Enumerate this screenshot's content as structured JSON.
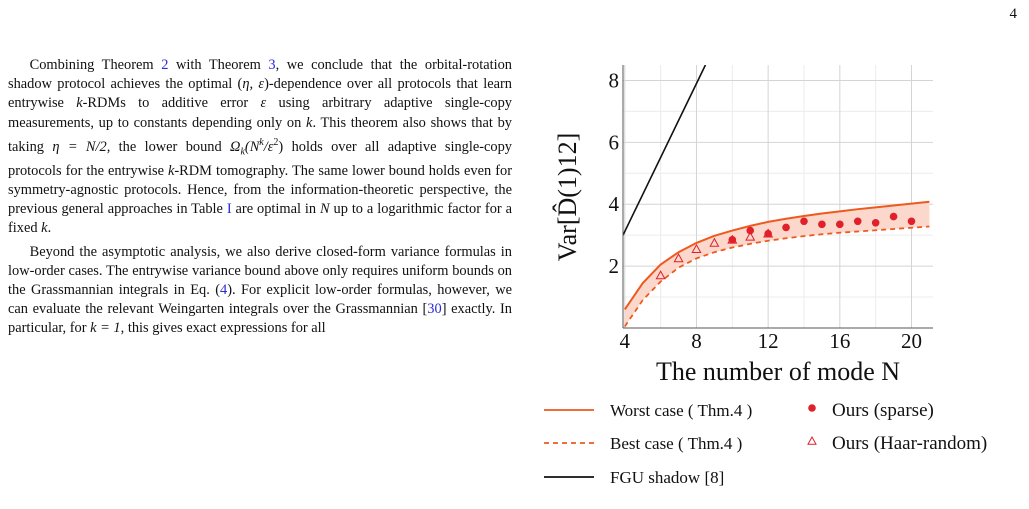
{
  "page": {
    "number": "4"
  },
  "paragraphs": [
    {
      "parts": [
        {
          "t": "Combining Theorem "
        },
        {
          "t": "2",
          "ref": true
        },
        {
          "t": " with Theorem "
        },
        {
          "t": "3",
          "ref": true
        },
        {
          "t": ", we conclude that the orbital-rotation shadow protocol achieves the optimal ("
        },
        {
          "t": "η, ε",
          "math": true
        },
        {
          "t": ")-dependence over all protocols that learn entrywise "
        },
        {
          "t": "k",
          "math": true
        },
        {
          "t": "-RDMs to additive error "
        },
        {
          "t": "ε",
          "math": true
        },
        {
          "t": " using arbitrary adaptive single-copy measurements, up to constants depending only on "
        },
        {
          "t": "k",
          "math": true
        },
        {
          "t": ". This theorem also shows that by taking "
        },
        {
          "t": "η = N/2",
          "math": true
        },
        {
          "t": ", the lower bound "
        },
        {
          "t": "Ω",
          "math": true
        },
        {
          "t": "k",
          "math": true,
          "sub": true
        },
        {
          "t": "(N",
          "math": true
        },
        {
          "t": "k",
          "math": true,
          "sup": true
        },
        {
          "t": "/ε",
          "math": true
        },
        {
          "t": "2",
          "sup": true
        },
        {
          "t": ")"
        },
        {
          "t": " holds over all adaptive single-copy protocols for the entrywise "
        },
        {
          "t": "k",
          "math": true
        },
        {
          "t": "-RDM tomography. The same lower bound holds even for symmetry-agnostic protocols. Hence, from the information-theoretic perspective, the previous general approaches in Table "
        },
        {
          "t": "I",
          "ref": true
        },
        {
          "t": " are optimal in "
        },
        {
          "t": "N",
          "math": true
        },
        {
          "t": " up to a logarithmic factor for a fixed "
        },
        {
          "t": "k",
          "math": true
        },
        {
          "t": "."
        }
      ]
    },
    {
      "parts": [
        {
          "t": "Beyond the asymptotic analysis, we also derive closed-form variance formulas in low-order cases. The entrywise variance bound above only requires uniform bounds on the Grassmannian integrals in Eq. ("
        },
        {
          "t": "4",
          "ref": true
        },
        {
          "t": "). For explicit low-order formulas, however, we can evaluate the relevant Weingarten integrals over the Grassmannian ["
        },
        {
          "t": "30",
          "ref": true
        },
        {
          "t": "] exactly. In particular, for "
        },
        {
          "t": "k = 1",
          "math": true
        },
        {
          "t": ", this gives exact expressions for all"
        }
      ]
    }
  ],
  "chart_data": {
    "type": "line",
    "ylabel": "Var[D̂(1)12]",
    "xlabel": "The number of mode N",
    "xlim": [
      3.9,
      21.2
    ],
    "ylim": [
      0,
      8.5
    ],
    "xticks": [
      4,
      8,
      12,
      16,
      20
    ],
    "yticks": [
      2,
      4,
      6,
      8
    ],
    "grid": true,
    "legend_position": "below",
    "colors": {
      "bound": "#ee5a1e",
      "band": "#fbd8cb",
      "ours": "#e0202a",
      "fgu": "#111111"
    },
    "series": [
      {
        "name": "Worst case ( Thm.4 )",
        "style": "solid",
        "x": [
          4,
          5,
          6,
          7,
          8,
          9,
          10,
          11,
          12,
          13,
          14,
          15,
          16,
          17,
          18,
          19,
          20,
          21
        ],
        "y": [
          0.6,
          1.45,
          2.05,
          2.45,
          2.75,
          2.98,
          3.15,
          3.3,
          3.43,
          3.53,
          3.62,
          3.7,
          3.77,
          3.84,
          3.9,
          3.96,
          4.02,
          4.08
        ]
      },
      {
        "name": "Best case ( Thm.4 )",
        "style": "dashed",
        "x": [
          4,
          5,
          6,
          7,
          8,
          9,
          10,
          11,
          12,
          13,
          14,
          15,
          16,
          17,
          18,
          19,
          20,
          21
        ],
        "y": [
          0.05,
          0.9,
          1.5,
          1.95,
          2.25,
          2.45,
          2.6,
          2.72,
          2.82,
          2.9,
          2.97,
          3.03,
          3.08,
          3.12,
          3.16,
          3.2,
          3.24,
          3.28
        ]
      },
      {
        "name": "FGU shadow [8]",
        "style": "solid",
        "x": [
          3.9,
          8.5
        ],
        "y": [
          3.0,
          8.5
        ]
      },
      {
        "name": "Ours (sparse)",
        "marker": "dot",
        "x": [
          10,
          11,
          12,
          13,
          14,
          15,
          16,
          17,
          18,
          19,
          20
        ],
        "y": [
          2.85,
          3.15,
          3.05,
          3.25,
          3.45,
          3.35,
          3.35,
          3.45,
          3.4,
          3.6,
          3.45
        ]
      },
      {
        "name": "Ours (Haar-random)",
        "marker": "triangle",
        "x": [
          6,
          7,
          8,
          9,
          10,
          11,
          12
        ],
        "y": [
          1.7,
          2.25,
          2.55,
          2.75,
          2.85,
          2.95,
          3.05
        ]
      }
    ]
  }
}
